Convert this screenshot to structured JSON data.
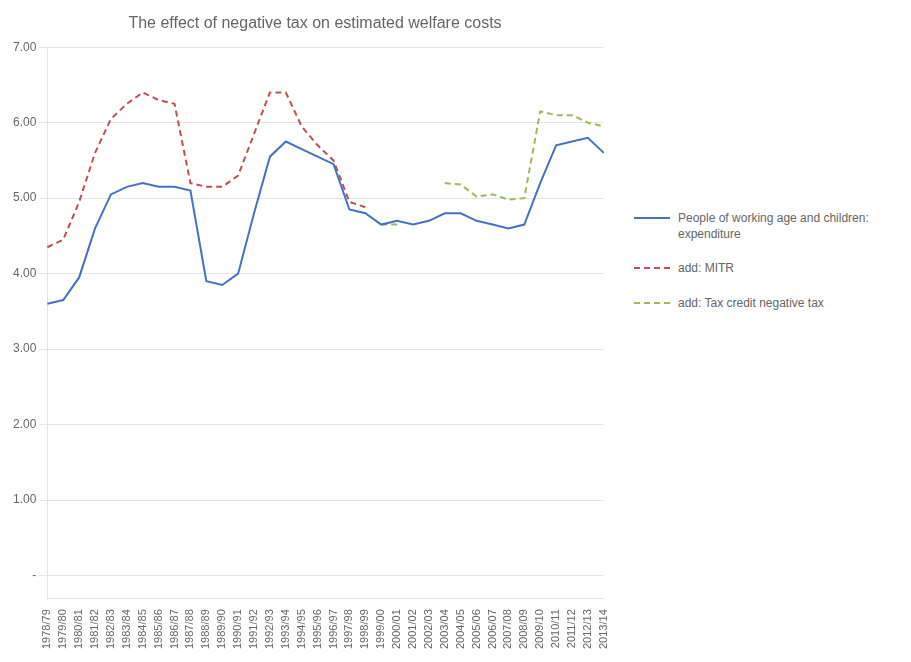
{
  "chart_data": {
    "type": "line",
    "title": "The effect of negative tax on estimated welfare costs",
    "categories": [
      "1978/79",
      "1979/80",
      "1980/81",
      "1981/82",
      "1982/83",
      "1983/84",
      "1984/85",
      "1985/86",
      "1986/87",
      "1987/88",
      "1988/89",
      "1989/90",
      "1990/91",
      "1991/92",
      "1992/93",
      "1993/94",
      "1994/95",
      "1995/96",
      "1996/97",
      "1997/98",
      "1998/99",
      "1999/00",
      "2000/01",
      "2001/02",
      "2002/03",
      "2003/04",
      "2004/05",
      "2005/06",
      "2006/07",
      "2007/08",
      "2008/09",
      "2009/10",
      "2010/11",
      "2011/12",
      "2012/13",
      "2013/14"
    ],
    "series": [
      {
        "name": "People of working age and children:\nexpenditure",
        "color": "#4472C4",
        "line_style": "solid",
        "values": [
          3.6,
          3.65,
          3.95,
          4.6,
          5.05,
          5.15,
          5.2,
          5.15,
          5.15,
          5.1,
          3.9,
          3.85,
          4.0,
          4.8,
          5.55,
          5.75,
          5.65,
          5.55,
          5.45,
          4.85,
          4.8,
          4.65,
          4.7,
          4.65,
          4.7,
          4.8,
          4.8,
          4.7,
          4.65,
          4.6,
          4.65,
          5.2,
          5.7,
          5.75,
          5.8,
          5.6
        ]
      },
      {
        "name": "add: MITR",
        "color": "#C0504D",
        "line_style": "dashed",
        "values": [
          4.35,
          4.45,
          4.95,
          5.6,
          6.05,
          6.25,
          6.4,
          6.3,
          6.25,
          5.2,
          5.15,
          5.15,
          5.3,
          5.85,
          6.4,
          6.4,
          5.95,
          5.7,
          5.5,
          4.95,
          4.88,
          null,
          null,
          null,
          null,
          null,
          null,
          null,
          null,
          null,
          null,
          null,
          null,
          null,
          null,
          null
        ]
      },
      {
        "name": "add: Tax credit negative tax",
        "color": "#9BBB59",
        "line_style": "dashed",
        "values": [
          null,
          null,
          null,
          null,
          null,
          null,
          null,
          null,
          null,
          null,
          null,
          null,
          null,
          null,
          null,
          null,
          null,
          null,
          null,
          null,
          null,
          4.65,
          4.65,
          null,
          null,
          5.2,
          5.18,
          5.02,
          5.05,
          4.98,
          5.0,
          6.15,
          6.1,
          6.1,
          6.0,
          5.95
        ]
      }
    ],
    "ylim": [
      -0.3,
      7.0
    ],
    "yticks": [
      {
        "value": 0,
        "label": "-"
      },
      {
        "value": 1.0,
        "label": "1.00"
      },
      {
        "value": 2.0,
        "label": "2.00"
      },
      {
        "value": 3.0,
        "label": "3.00"
      },
      {
        "value": 4.0,
        "label": "4.00"
      },
      {
        "value": 5.0,
        "label": "5.00"
      },
      {
        "value": 6.0,
        "label": "6.00"
      },
      {
        "value": 7.0,
        "label": "7.00"
      }
    ],
    "grid": true,
    "legend": "right"
  }
}
